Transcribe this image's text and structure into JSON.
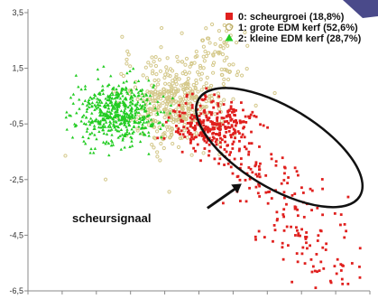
{
  "chart_data": {
    "type": "scatter",
    "title": "",
    "xlabel": "",
    "ylabel": "",
    "ylim": [
      -6.5,
      3.5
    ],
    "xlim": [
      -6,
      4
    ],
    "y_ticks": [
      "3,5",
      "1,5",
      "-0,5",
      "-2,5",
      "-4,5",
      "-6,5"
    ],
    "grid": false,
    "legend_position": "top-right",
    "series": [
      {
        "name": "0: scheurgroei (18,8%)",
        "color": "#e0201e",
        "marker": "square",
        "cluster": {
          "center": [
            -0.6,
            -0.5
          ],
          "spread": [
            0.55,
            0.45
          ],
          "count": 260
        },
        "tail": {
          "from": [
            -0.6,
            -0.5
          ],
          "to": [
            3.1,
            -5.7
          ],
          "count": 210
        }
      },
      {
        "name": "1: grote EDM kerf (52,6%)",
        "color": "#d4c88a",
        "marker": "circle-open",
        "cluster": {
          "center": [
            -1.7,
            0.3
          ],
          "spread": [
            0.75,
            0.8
          ],
          "count": 420
        },
        "extra": {
          "center": [
            -0.3,
            1.9
          ],
          "spread": [
            0.35,
            0.75
          ],
          "count": 60
        }
      },
      {
        "name": "2: kleine EDM kerf (28,7%)",
        "color": "#22cc22",
        "marker": "triangle",
        "cluster": {
          "center": [
            -3.4,
            -0.1
          ],
          "spread": [
            0.6,
            0.55
          ],
          "count": 520
        }
      }
    ],
    "annotation": {
      "text": "scheursignaal",
      "ellipse": {
        "cx": 1.35,
        "cy": -1.35,
        "rx": 2.75,
        "ry": 1.45,
        "angle_deg": 31
      },
      "arrow_tip": [
        0.25,
        -2.65
      ]
    }
  },
  "colors": {
    "axis": "#888888",
    "ellipse": "#111111",
    "corner_accent": "#4a4a8a"
  },
  "icons": {
    "arrow": "arrow-icon"
  }
}
